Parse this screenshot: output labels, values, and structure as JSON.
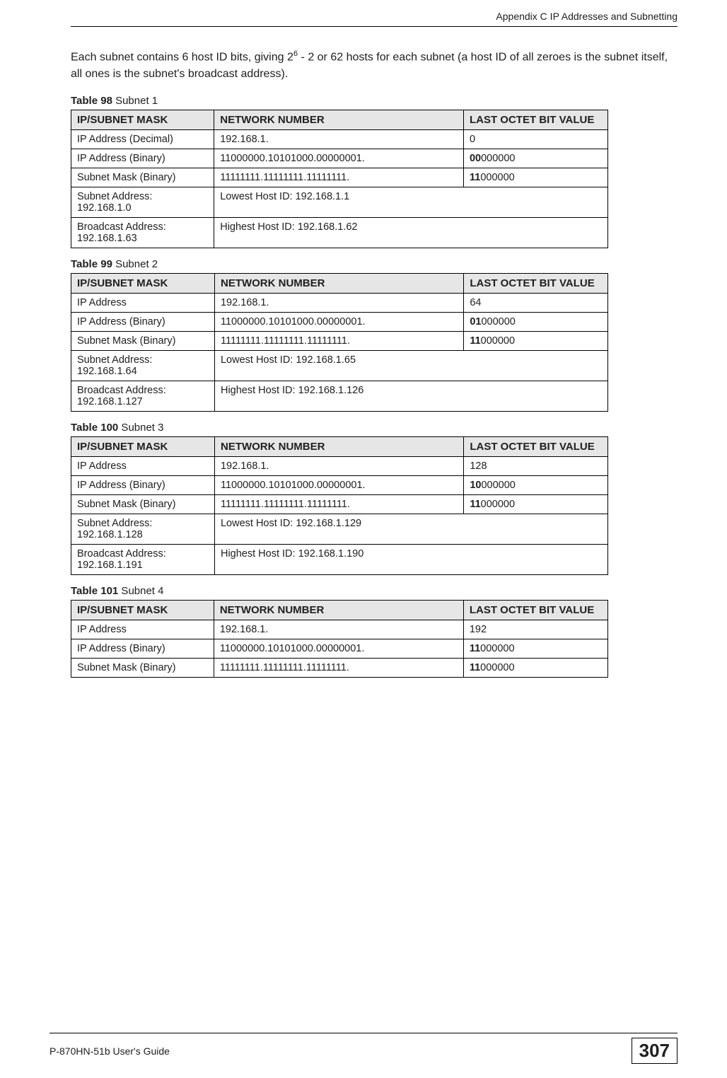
{
  "header": {
    "title": "Appendix C IP Addresses and Subnetting"
  },
  "intro": {
    "text_before_sup": "Each subnet contains 6 host ID bits, giving 2",
    "sup": "6",
    "text_after_sup": " - 2 or 62 hosts for each subnet (a host ID of all zeroes is the subnet itself, all ones is the subnet's broadcast address)."
  },
  "tables": [
    {
      "number": "Table 98",
      "title": "Subnet 1",
      "headers": [
        "IP/SUBNET MASK",
        "NETWORK NUMBER",
        "LAST OCTET BIT VALUE"
      ],
      "rows": [
        {
          "c1": "IP Address (Decimal)",
          "c2": "192.168.1.",
          "c3_bold": "",
          "c3_rest": "0"
        },
        {
          "c1": "IP Address (Binary)",
          "c2": "11000000.10101000.00000001.",
          "c3_bold": "00",
          "c3_rest": "000000"
        },
        {
          "c1": "Subnet Mask (Binary)",
          "c2": "11111111.11111111.11111111.",
          "c3_bold": "11",
          "c3_rest": "000000"
        },
        {
          "c1": "Subnet Address: 192.168.1.0",
          "c2span": "Lowest Host ID: 192.168.1.1"
        },
        {
          "c1": "Broadcast Address: 192.168.1.63",
          "c2span": "Highest Host ID: 192.168.1.62"
        }
      ]
    },
    {
      "number": "Table 99",
      "title": "Subnet 2",
      "headers": [
        "IP/SUBNET MASK",
        "NETWORK NUMBER",
        "LAST OCTET BIT VALUE"
      ],
      "rows": [
        {
          "c1": "IP Address",
          "c2": "192.168.1.",
          "c3_bold": "",
          "c3_rest": "64"
        },
        {
          "c1": "IP Address (Binary)",
          "c2": "11000000.10101000.00000001.",
          "c3_bold": "01",
          "c3_rest": "000000"
        },
        {
          "c1": "Subnet Mask (Binary)",
          "c2": "11111111.11111111.11111111.",
          "c3_bold": "11",
          "c3_rest": "000000"
        },
        {
          "c1": "Subnet Address: 192.168.1.64",
          "c2span": "Lowest Host ID: 192.168.1.65"
        },
        {
          "c1": "Broadcast Address: 192.168.1.127",
          "c2span": "Highest Host ID: 192.168.1.126"
        }
      ]
    },
    {
      "number": "Table 100",
      "title": "Subnet 3",
      "headers": [
        "IP/SUBNET MASK",
        "NETWORK NUMBER",
        "LAST OCTET BIT VALUE"
      ],
      "rows": [
        {
          "c1": "IP Address",
          "c2": "192.168.1.",
          "c3_bold": "",
          "c3_rest": "128"
        },
        {
          "c1": "IP Address (Binary)",
          "c2": "11000000.10101000.00000001.",
          "c3_bold": "10",
          "c3_rest": "000000"
        },
        {
          "c1": "Subnet Mask (Binary)",
          "c2": "11111111.11111111.11111111.",
          "c3_bold": "11",
          "c3_rest": "000000"
        },
        {
          "c1": "Subnet Address: 192.168.1.128",
          "c2span": "Lowest Host ID: 192.168.1.129"
        },
        {
          "c1": "Broadcast Address: 192.168.1.191",
          "c2span": "Highest Host ID: 192.168.1.190"
        }
      ]
    },
    {
      "number": "Table 101",
      "title": "Subnet 4",
      "headers": [
        "IP/SUBNET MASK",
        "NETWORK NUMBER",
        "LAST OCTET BIT VALUE"
      ],
      "rows": [
        {
          "c1": "IP Address",
          "c2": "192.168.1.",
          "c3_bold": "",
          "c3_rest": "192"
        },
        {
          "c1": "IP Address (Binary)",
          "c2": "11000000.10101000.00000001.",
          "c3_bold": "11",
          "c3_rest": "000000"
        },
        {
          "c1": "Subnet Mask (Binary)",
          "c2": "11111111.11111111.11111111.",
          "c3_bold": "11",
          "c3_rest": "000000"
        }
      ]
    }
  ],
  "footer": {
    "left": "P-870HN-51b User's Guide",
    "page": "307"
  }
}
